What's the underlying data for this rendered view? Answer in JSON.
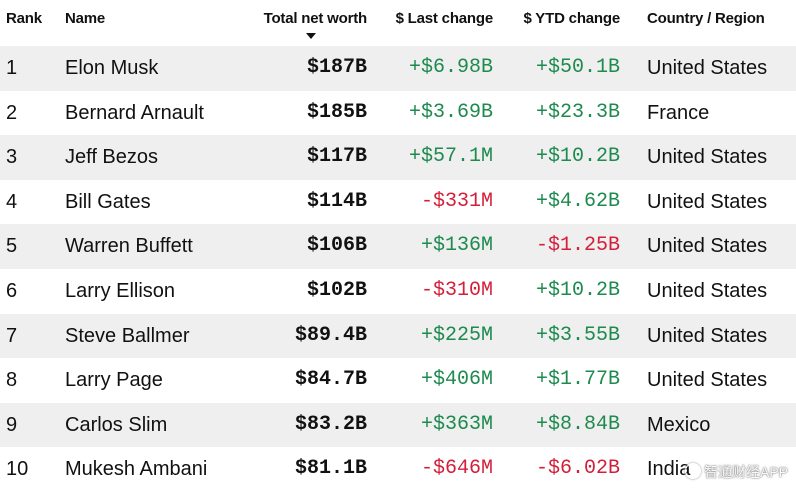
{
  "header": {
    "rank": "Rank",
    "name": "Name",
    "worth": "Total net worth",
    "last": "$ Last change",
    "ytd": "$ YTD change",
    "country": "Country / Region"
  },
  "rows": [
    {
      "rank": "1",
      "name": "Elon Musk",
      "worth": "$187B",
      "last": "+$6.98B",
      "ytd": "+$50.1B",
      "country": "United States"
    },
    {
      "rank": "2",
      "name": "Bernard Arnault",
      "worth": "$185B",
      "last": "+$3.69B",
      "ytd": "+$23.3B",
      "country": "France"
    },
    {
      "rank": "3",
      "name": "Jeff Bezos",
      "worth": "$117B",
      "last": "+$57.1M",
      "ytd": "+$10.2B",
      "country": "United States"
    },
    {
      "rank": "4",
      "name": "Bill Gates",
      "worth": "$114B",
      "last": "-$331M",
      "ytd": "+$4.62B",
      "country": "United States"
    },
    {
      "rank": "5",
      "name": "Warren Buffett",
      "worth": "$106B",
      "last": "+$136M",
      "ytd": "-$1.25B",
      "country": "United States"
    },
    {
      "rank": "6",
      "name": "Larry Ellison",
      "worth": "$102B",
      "last": "-$310M",
      "ytd": "+$10.2B",
      "country": "United States"
    },
    {
      "rank": "7",
      "name": "Steve Ballmer",
      "worth": "$89.4B",
      "last": "+$225M",
      "ytd": "+$3.55B",
      "country": "United States"
    },
    {
      "rank": "8",
      "name": "Larry Page",
      "worth": "$84.7B",
      "last": "+$406M",
      "ytd": "+$1.77B",
      "country": "United States"
    },
    {
      "rank": "9",
      "name": "Carlos Slim",
      "worth": "$83.2B",
      "last": "+$363M",
      "ytd": "+$8.84B",
      "country": "Mexico"
    },
    {
      "rank": "10",
      "name": "Mukesh Ambani",
      "worth": "$81.1B",
      "last": "-$646M",
      "ytd": "-$6.02B",
      "country": "India"
    }
  ],
  "watermark": "智通财经APP",
  "colors": {
    "positive": "#1d8a4e",
    "negative": "#d31f3a",
    "row_shade": "#efefef"
  },
  "sort": {
    "column": "worth",
    "icon": "sort-descending-icon"
  }
}
